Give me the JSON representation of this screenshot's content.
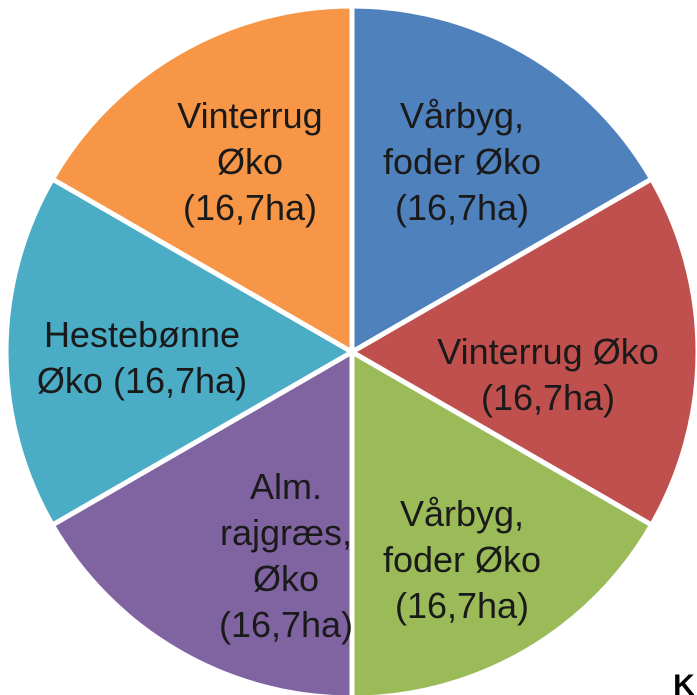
{
  "chart_data": {
    "type": "pie",
    "categories": [
      "Vårbyg, foder Øko",
      "Vinterrug Øko",
      "Vårbyg, foder Øko",
      "Alm. rajgræs, Øko",
      "Hestebønne Øko",
      "Vinterrug Øko"
    ],
    "values": [
      16.7,
      16.7,
      16.7,
      16.7,
      16.7,
      16.7
    ],
    "value_labels": [
      "(16,7ha)",
      "(16,7ha)",
      "(16,7ha)",
      "(16,7ha)",
      "(16,7ha)",
      "(16,7ha)"
    ],
    "colors": [
      "#4f81bd",
      "#c0504d",
      "#9bbb59",
      "#8064a2",
      "#4bacc6",
      "#f79646"
    ],
    "note": "K"
  }
}
